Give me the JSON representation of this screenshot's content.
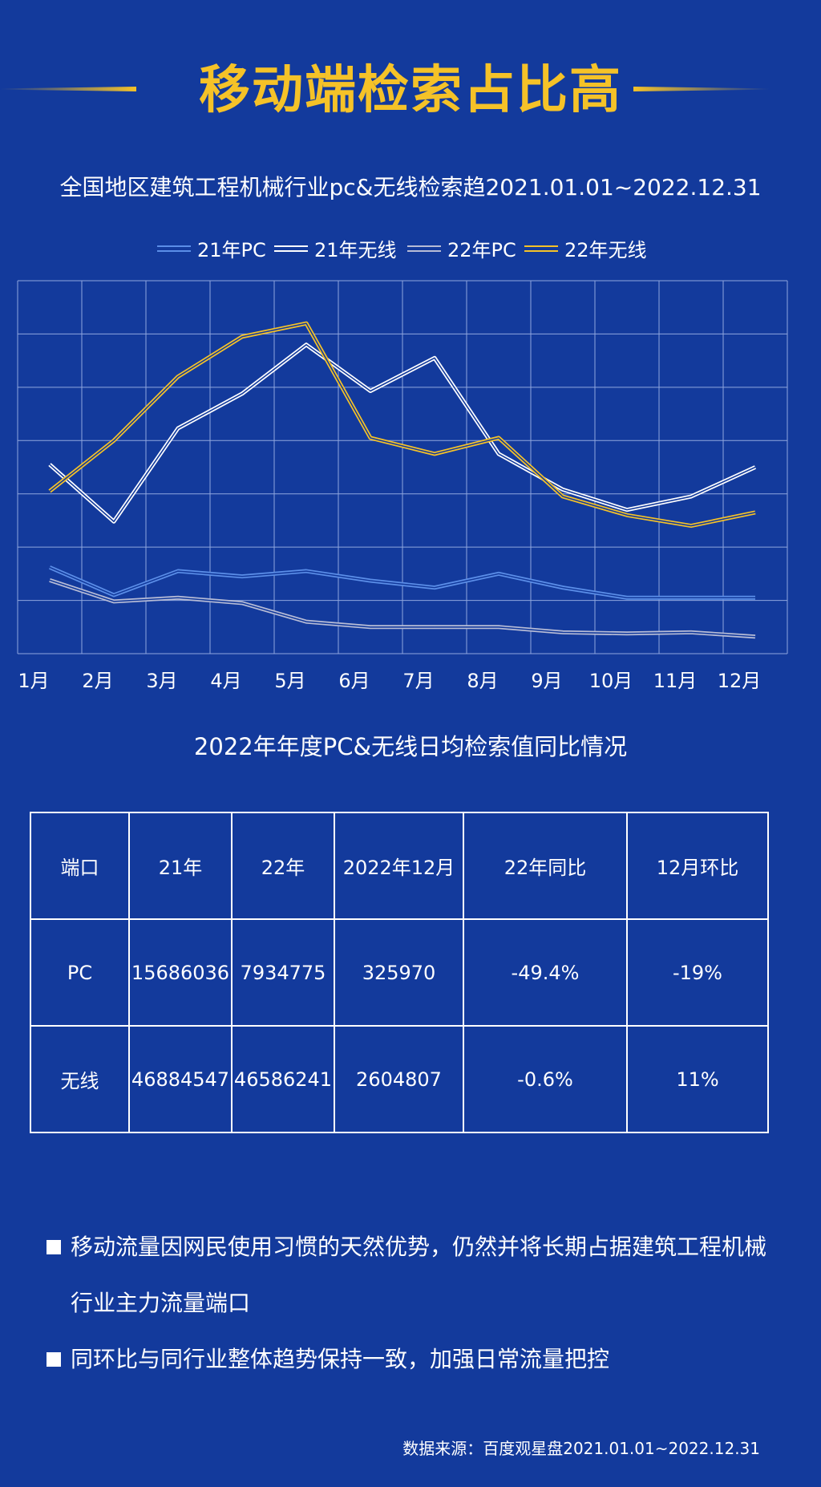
{
  "header": {
    "title": "移动端检索占比高"
  },
  "chart_title": "全国地区建筑工程机械行业pc&无线检索趋2021.01.01~2022.12.31",
  "chart_data": {
    "type": "line",
    "title": "全国地区建筑工程机械行业pc&无线检索趋2021.01.01~2022.12.31",
    "categories": [
      "1月",
      "2月",
      "3月",
      "4月",
      "5月",
      "6月",
      "7月",
      "8月",
      "9月",
      "10月",
      "11月",
      "12月"
    ],
    "ylim": [
      0,
      7
    ],
    "grid": true,
    "legend_position": "top",
    "series": [
      {
        "name": "21年PC",
        "color": "#5b8ee8",
        "values": [
          1.62,
          1.1,
          1.55,
          1.45,
          1.55,
          1.37,
          1.24,
          1.5,
          1.24,
          1.05,
          1.05,
          1.05
        ]
      },
      {
        "name": "21年无线",
        "color": "#ffffff",
        "values": [
          3.55,
          2.48,
          4.23,
          4.88,
          5.8,
          4.93,
          5.55,
          3.75,
          3.08,
          2.7,
          2.95,
          3.5
        ]
      },
      {
        "name": "22年PC",
        "color": "#b7bcd6",
        "values": [
          1.38,
          0.98,
          1.05,
          0.95,
          0.6,
          0.5,
          0.5,
          0.5,
          0.4,
          0.38,
          0.4,
          0.32
        ]
      },
      {
        "name": "22年无线",
        "color": "#f5c228",
        "values": [
          3.05,
          4.0,
          5.2,
          5.95,
          6.2,
          4.05,
          3.75,
          4.05,
          2.95,
          2.6,
          2.4,
          2.65
        ]
      }
    ]
  },
  "table": {
    "title": "2022年年度PC&无线日均检索值同比情况",
    "headers": [
      "端口",
      "21年",
      "22年",
      "2022年12月",
      "22年同比",
      "12月环比"
    ],
    "rows": [
      [
        "PC",
        "15686036",
        "7934775",
        "325970",
        "-49.4%",
        "-19%"
      ],
      [
        "无线",
        "46884547",
        "46586241",
        "2604807",
        "-0.6%",
        "11%"
      ]
    ]
  },
  "bullets": [
    "移动流量因网民使用习惯的天然优势，仍然并将长期占据建筑工程机械行业主力流量端口",
    "同环比与同行业整体趋势保持一致，加强日常流量把控"
  ],
  "source": "数据来源：百度观星盘2021.01.01~2022.12.31",
  "colors": {
    "background": "#133a9c",
    "accent": "#f5c228",
    "grid": "#8fa6de"
  }
}
